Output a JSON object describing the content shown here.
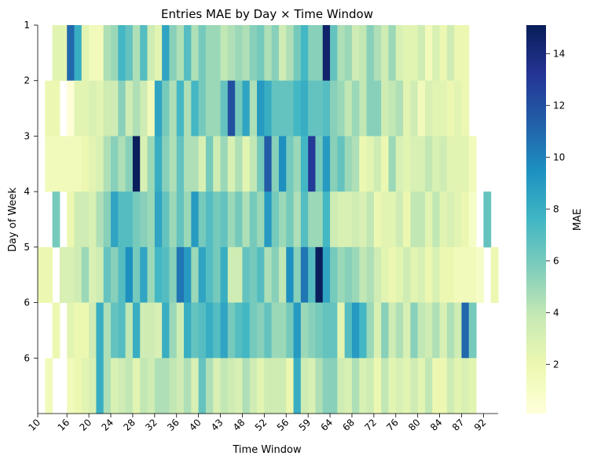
{
  "chart_data": {
    "type": "heatmap",
    "title": "Entries MAE by Day × Time Window",
    "xlabel": "Time Window",
    "ylabel": "Day of Week",
    "colorbar_label": "MAE",
    "colormap": "YlGnBu",
    "vmin": 0.1,
    "vmax": 15.1,
    "colorbar_ticks": [
      2,
      4,
      6,
      8,
      10,
      12,
      14
    ],
    "rows": [
      "1",
      "2",
      "3",
      "4",
      "5",
      "6",
      "6"
    ],
    "x_tick_labels": [
      "10",
      "16",
      "20",
      "24",
      "28",
      "32",
      "36",
      "40",
      "43",
      "48",
      "52",
      "56",
      "59",
      "64",
      "68",
      "72",
      "76",
      "80",
      "84",
      "87",
      "92"
    ],
    "x_tick_columns": [
      0,
      4,
      7,
      10,
      13,
      16,
      19,
      22,
      25,
      28,
      31,
      34,
      37,
      40,
      43,
      46,
      49,
      52,
      55,
      58,
      61
    ],
    "n_columns": 63,
    "values": [
      [
        null,
        null,
        2.5,
        2.5,
        11,
        8,
        2.5,
        1.5,
        1.5,
        4.5,
        5,
        7.5,
        6.5,
        4.5,
        7,
        3.5,
        2.5,
        8.5,
        5.5,
        4.5,
        7,
        4.5,
        6,
        5,
        5,
        4,
        4.5,
        5,
        4.5,
        5.5,
        6,
        4.5,
        5.5,
        3.5,
        4.5,
        6,
        7.5,
        5.5,
        5.5,
        14.5,
        6.5,
        4.5,
        5,
        3.5,
        4,
        5.5,
        4.5,
        3.5,
        5,
        3,
        2.5,
        2.5,
        3.5,
        1.5,
        3,
        2,
        3.5,
        2,
        2,
        null,
        null,
        null,
        null
      ],
      [
        null,
        2,
        2,
        null,
        0.3,
        2.5,
        2.5,
        3,
        2.5,
        3.5,
        3.5,
        5.5,
        3.5,
        4.5,
        3.5,
        1.5,
        8.5,
        6,
        4.5,
        7.5,
        4.5,
        7.5,
        6,
        5,
        5,
        6.5,
        12,
        6,
        8.5,
        4.5,
        9,
        8,
        6.5,
        6.5,
        6.5,
        7.5,
        8,
        6.5,
        6.5,
        7,
        5.5,
        5,
        4,
        5,
        4,
        5.5,
        5.5,
        3.5,
        4,
        4.5,
        2.5,
        3.5,
        1.5,
        3,
        2.5,
        2.5,
        2,
        2.5,
        2,
        null,
        null,
        null,
        null
      ],
      [
        null,
        1.5,
        1.5,
        1.5,
        1.5,
        1.5,
        2,
        2.5,
        3,
        4.5,
        5.5,
        4.5,
        5.5,
        15,
        3,
        5,
        8,
        5.5,
        4.5,
        6.5,
        4.5,
        4.5,
        3,
        6,
        3.5,
        5,
        3,
        4.5,
        2.5,
        4,
        6,
        11.5,
        5.5,
        9.5,
        6,
        5,
        7.5,
        13,
        6,
        9,
        5.5,
        6.5,
        5,
        4.5,
        2,
        2.5,
        3.5,
        2,
        5,
        3,
        2.5,
        3,
        3,
        4,
        3,
        3.5,
        2.5,
        2.5,
        2.5,
        1.5,
        null,
        null,
        null
      ],
      [
        null,
        null,
        6,
        null,
        2,
        3.5,
        3.5,
        3,
        4.5,
        5.5,
        8.5,
        7,
        7,
        6,
        5.5,
        5,
        8.5,
        6.5,
        5,
        6.5,
        5,
        9,
        6,
        7,
        6,
        6.5,
        5,
        6,
        4.5,
        6,
        5,
        9,
        6,
        5,
        6,
        4.5,
        7,
        5,
        5,
        7.5,
        3.5,
        3,
        3,
        3.5,
        3,
        4,
        2,
        2.5,
        2.5,
        3.5,
        2,
        4,
        4,
        2.5,
        4,
        2.5,
        3,
        2.5,
        2,
        1,
        null,
        6.5,
        null
      ],
      [
        2,
        2,
        null,
        3,
        3,
        3.5,
        5,
        3,
        3.5,
        6.5,
        5.5,
        7,
        9.5,
        6,
        8.5,
        5,
        7.5,
        7,
        5.5,
        10.5,
        9,
        5,
        8.5,
        7,
        6,
        8,
        3.5,
        3.5,
        6.5,
        6,
        7,
        4.5,
        5.5,
        4,
        9.5,
        5.5,
        10.5,
        7,
        15,
        8.5,
        6,
        5,
        5.5,
        5,
        4,
        4.5,
        3.5,
        2.5,
        2,
        2.5,
        3.5,
        2.5,
        3,
        2,
        3,
        2,
        2,
        1.5,
        1.5,
        1.5,
        1,
        null,
        2
      ],
      [
        null,
        null,
        2,
        null,
        2.5,
        2,
        2,
        3.5,
        8,
        4.5,
        6.5,
        7,
        4,
        8,
        3.5,
        3.5,
        3,
        8,
        5,
        3.5,
        8,
        6.5,
        7,
        8,
        7,
        8.5,
        6,
        7,
        7.5,
        6,
        5.5,
        6.5,
        5,
        5,
        6,
        9,
        5,
        5.5,
        6,
        6.5,
        6.5,
        2.5,
        7,
        9,
        7.5,
        5,
        3,
        5.5,
        3.5,
        4.5,
        3,
        5.5,
        4,
        3.5,
        4.5,
        3,
        4.5,
        3.5,
        11,
        6,
        null,
        null,
        null
      ],
      [
        null,
        1.5,
        null,
        null,
        1.5,
        2,
        2.5,
        3,
        8,
        4.5,
        3,
        3.5,
        4,
        2.5,
        4,
        3.5,
        4.5,
        4.5,
        4,
        3.5,
        4.5,
        3,
        6.5,
        4.5,
        3,
        4,
        3.5,
        3,
        4.5,
        3.5,
        2.5,
        3.5,
        3.5,
        3.5,
        2,
        8,
        3.5,
        3,
        4.5,
        5.5,
        5.5,
        3.5,
        3,
        4.5,
        3,
        3.5,
        2,
        4,
        2.5,
        3,
        2.5,
        3.5,
        2.5,
        4,
        2,
        2,
        3.5,
        2.5,
        3,
        2.5,
        null,
        null,
        null
      ]
    ]
  }
}
